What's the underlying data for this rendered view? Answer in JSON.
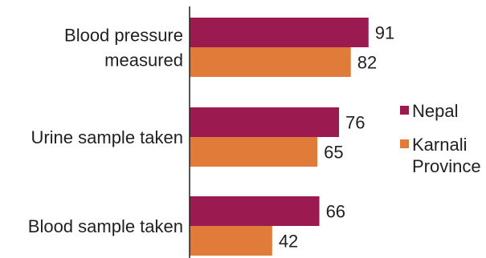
{
  "chart_data": {
    "type": "bar",
    "orientation": "horizontal",
    "title": "",
    "xlabel": "",
    "ylabel": "",
    "categories": [
      [
        "Blood pressure",
        "measured"
      ],
      [
        "Urine sample taken"
      ],
      [
        "Blood sample taken"
      ]
    ],
    "series": [
      {
        "name": "Nepal",
        "values": [
          91,
          76,
          66
        ],
        "color": "#9B1B50"
      },
      {
        "name": "Karnali Province",
        "values": [
          82,
          65,
          42
        ],
        "color": "#E07B39"
      }
    ],
    "legend": {
      "placement": "right",
      "entries": [
        {
          "lines": [
            "Nepal"
          ],
          "color": "#9B1B50"
        },
        {
          "lines": [
            "Karnali",
            "Province"
          ],
          "color": "#E07B39"
        }
      ]
    },
    "xlim": [
      0,
      100
    ],
    "grid": false
  }
}
